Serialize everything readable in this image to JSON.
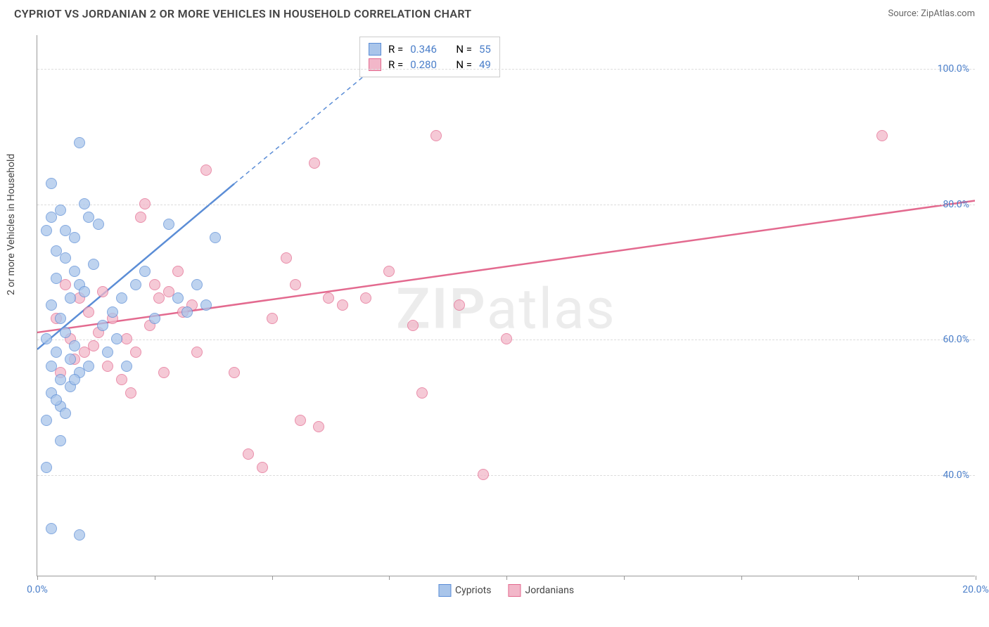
{
  "header": {
    "title": "CYPRIOT VS JORDANIAN 2 OR MORE VEHICLES IN HOUSEHOLD CORRELATION CHART",
    "source_prefix": "Source: ",
    "source": "ZipAtlas.com"
  },
  "watermark": {
    "zip": "ZIP",
    "atlas": "atlas"
  },
  "chart": {
    "type": "scatter",
    "ylabel": "2 or more Vehicles in Household",
    "xlim": [
      0,
      20
    ],
    "ylim": [
      25,
      105
    ],
    "x_ticks": [
      0,
      2.5,
      5,
      7.5,
      10,
      12.5,
      15,
      17.5,
      20
    ],
    "x_tick_labels": {
      "0": "0.0%",
      "20": "20.0%"
    },
    "y_gridlines": [
      40,
      60,
      80,
      100
    ],
    "y_tick_labels": {
      "40": "40.0%",
      "60": "60.0%",
      "80": "80.0%",
      "100": "100.0%"
    },
    "background_color": "#ffffff",
    "grid_color": "#dddddd",
    "axis_color": "#999999",
    "tick_label_color": "#4a7ec9",
    "marker_radius": 8,
    "marker_fill_opacity": 0.25,
    "series": {
      "cypriots": {
        "label": "Cypriots",
        "color_stroke": "#5b8dd6",
        "color_fill": "#a9c5ea",
        "R": "0.346",
        "N": "55",
        "regression": {
          "x1": 0,
          "y1": 58.5,
          "x2": 4.2,
          "y2": 83,
          "dash_x2": 7.5,
          "dash_y2": 102
        },
        "points": [
          [
            0.2,
            76
          ],
          [
            0.3,
            78
          ],
          [
            0.5,
            79
          ],
          [
            0.9,
            89
          ],
          [
            0.4,
            69
          ],
          [
            0.6,
            72
          ],
          [
            0.8,
            75
          ],
          [
            1.0,
            80
          ],
          [
            1.1,
            78
          ],
          [
            1.3,
            77
          ],
          [
            0.3,
            65
          ],
          [
            0.5,
            63
          ],
          [
            0.7,
            66
          ],
          [
            0.9,
            68
          ],
          [
            0.2,
            60
          ],
          [
            0.4,
            58
          ],
          [
            0.6,
            61
          ],
          [
            0.8,
            59
          ],
          [
            0.3,
            56
          ],
          [
            0.5,
            54
          ],
          [
            0.7,
            57
          ],
          [
            0.9,
            55
          ],
          [
            1.1,
            56
          ],
          [
            0.3,
            52
          ],
          [
            0.5,
            50
          ],
          [
            0.7,
            53
          ],
          [
            0.2,
            48
          ],
          [
            0.4,
            51
          ],
          [
            0.6,
            49
          ],
          [
            0.8,
            54
          ],
          [
            0.2,
            41
          ],
          [
            0.9,
            31
          ],
          [
            0.3,
            32
          ],
          [
            1.4,
            62
          ],
          [
            1.6,
            64
          ],
          [
            1.8,
            66
          ],
          [
            1.5,
            58
          ],
          [
            1.7,
            60
          ],
          [
            1.9,
            56
          ],
          [
            2.1,
            68
          ],
          [
            2.3,
            70
          ],
          [
            2.5,
            63
          ],
          [
            2.8,
            77
          ],
          [
            3.0,
            66
          ],
          [
            3.2,
            64
          ],
          [
            3.4,
            68
          ],
          [
            3.6,
            65
          ],
          [
            3.8,
            75
          ],
          [
            0.4,
            73
          ],
          [
            0.6,
            76
          ],
          [
            0.8,
            70
          ],
          [
            1.0,
            67
          ],
          [
            1.2,
            71
          ],
          [
            0.5,
            45
          ],
          [
            0.3,
            83
          ]
        ]
      },
      "jordanians": {
        "label": "Jordanians",
        "color_stroke": "#e36a8f",
        "color_fill": "#f2b7c9",
        "R": "0.280",
        "N": "49",
        "regression": {
          "x1": 0,
          "y1": 61,
          "x2": 20,
          "y2": 80.5
        },
        "points": [
          [
            0.4,
            63
          ],
          [
            0.7,
            60
          ],
          [
            1.0,
            58
          ],
          [
            0.5,
            55
          ],
          [
            0.8,
            57
          ],
          [
            1.2,
            59
          ],
          [
            1.5,
            56
          ],
          [
            1.3,
            61
          ],
          [
            1.6,
            63
          ],
          [
            1.9,
            60
          ],
          [
            2.1,
            58
          ],
          [
            2.4,
            62
          ],
          [
            2.7,
            55
          ],
          [
            3.0,
            70
          ],
          [
            3.3,
            65
          ],
          [
            2.2,
            78
          ],
          [
            2.5,
            68
          ],
          [
            2.8,
            67
          ],
          [
            3.1,
            64
          ],
          [
            3.6,
            85
          ],
          [
            4.2,
            55
          ],
          [
            4.5,
            43
          ],
          [
            4.8,
            41
          ],
          [
            5.0,
            63
          ],
          [
            5.3,
            72
          ],
          [
            5.6,
            48
          ],
          [
            5.9,
            86
          ],
          [
            5.5,
            68
          ],
          [
            6.2,
            66
          ],
          [
            6.0,
            47
          ],
          [
            6.5,
            65
          ],
          [
            7.0,
            66
          ],
          [
            7.5,
            70
          ],
          [
            8.0,
            62
          ],
          [
            8.5,
            90
          ],
          [
            8.2,
            52
          ],
          [
            9.0,
            65
          ],
          [
            9.5,
            40
          ],
          [
            10.0,
            60
          ],
          [
            1.8,
            54
          ],
          [
            2.0,
            52
          ],
          [
            18.0,
            90
          ],
          [
            2.3,
            80
          ],
          [
            2.6,
            66
          ],
          [
            0.6,
            68
          ],
          [
            0.9,
            66
          ],
          [
            1.1,
            64
          ],
          [
            1.4,
            67
          ],
          [
            3.4,
            58
          ]
        ]
      }
    },
    "legend_top": {
      "r_label": "R =",
      "n_label": "N ="
    },
    "legend_bottom": [
      "Cypriots",
      "Jordanians"
    ]
  }
}
